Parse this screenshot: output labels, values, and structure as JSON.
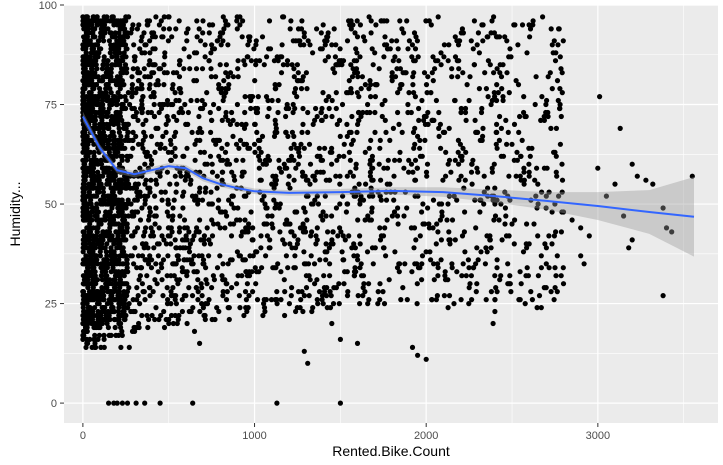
{
  "chart_data": {
    "type": "scatter",
    "title": "",
    "xlabel": "Rented.Bike.Count",
    "ylabel": "Humidity...",
    "xlim": [
      -110,
      3700
    ],
    "ylim": [
      -5,
      100
    ],
    "x_ticks": [
      0,
      1000,
      2000,
      3000
    ],
    "y_ticks": [
      0,
      25,
      50,
      75,
      100
    ],
    "x_tick_labels": [
      "0",
      "1000",
      "2000",
      "3000"
    ],
    "y_tick_labels": [
      "0",
      "25",
      "50",
      "75",
      "100"
    ],
    "grid": true,
    "legend": "none",
    "point_color": "#000000",
    "panel_background": "#ebebeb",
    "grid_color": "#ffffff",
    "smooth_color": "#3366ff",
    "ribbon_color": "#999999",
    "points": [
      [
        0,
        97
      ],
      [
        5,
        90
      ],
      [
        8,
        80
      ],
      [
        3,
        70
      ],
      [
        10,
        60
      ],
      [
        6,
        50
      ],
      [
        9,
        40
      ],
      [
        4,
        30
      ],
      [
        2,
        25
      ],
      [
        7,
        22
      ],
      [
        15,
        95
      ],
      [
        20,
        85
      ],
      [
        25,
        75
      ],
      [
        30,
        65
      ],
      [
        35,
        55
      ],
      [
        40,
        45
      ],
      [
        45,
        35
      ],
      [
        50,
        28
      ],
      [
        60,
        97
      ],
      [
        70,
        92
      ],
      [
        80,
        88
      ],
      [
        90,
        82
      ],
      [
        100,
        78
      ],
      [
        110,
        72
      ],
      [
        120,
        68
      ],
      [
        130,
        62
      ],
      [
        140,
        58
      ],
      [
        150,
        52
      ],
      [
        160,
        48
      ],
      [
        170,
        42
      ],
      [
        180,
        38
      ],
      [
        190,
        32
      ],
      [
        200,
        28
      ],
      [
        210,
        24
      ],
      [
        220,
        20
      ],
      [
        150,
        0
      ],
      [
        180,
        0
      ],
      [
        200,
        0
      ],
      [
        230,
        0
      ],
      [
        260,
        0
      ],
      [
        310,
        0
      ],
      [
        360,
        0
      ],
      [
        450,
        0
      ],
      [
        640,
        0
      ],
      [
        1130,
        0
      ],
      [
        1500,
        0
      ],
      [
        250,
        97
      ],
      [
        280,
        93
      ],
      [
        300,
        87
      ],
      [
        320,
        83
      ],
      [
        350,
        77
      ],
      [
        380,
        73
      ],
      [
        400,
        67
      ],
      [
        420,
        63
      ],
      [
        450,
        57
      ],
      [
        480,
        53
      ],
      [
        500,
        47
      ],
      [
        520,
        43
      ],
      [
        550,
        37
      ],
      [
        580,
        33
      ],
      [
        600,
        27
      ],
      [
        620,
        23
      ],
      [
        650,
        18
      ],
      [
        680,
        15
      ],
      [
        700,
        96
      ],
      [
        750,
        90
      ],
      [
        800,
        85
      ],
      [
        850,
        80
      ],
      [
        900,
        75
      ],
      [
        950,
        70
      ],
      [
        1000,
        65
      ],
      [
        1050,
        60
      ],
      [
        1100,
        55
      ],
      [
        1150,
        50
      ],
      [
        1200,
        45
      ],
      [
        1250,
        40
      ],
      [
        1300,
        35
      ],
      [
        1350,
        30
      ],
      [
        1400,
        25
      ],
      [
        1450,
        20
      ],
      [
        1310,
        10
      ],
      [
        1290,
        13
      ],
      [
        1500,
        16
      ],
      [
        1600,
        15
      ],
      [
        1600,
        92
      ],
      [
        1700,
        88
      ],
      [
        1800,
        82
      ],
      [
        1900,
        78
      ],
      [
        2000,
        72
      ],
      [
        2100,
        68
      ],
      [
        2200,
        62
      ],
      [
        2300,
        58
      ],
      [
        2400,
        50
      ],
      [
        2500,
        45
      ],
      [
        2600,
        40
      ],
      [
        2700,
        35
      ],
      [
        2800,
        30
      ],
      [
        1950,
        12
      ],
      [
        2000,
        11
      ],
      [
        1920,
        14
      ],
      [
        2390,
        20
      ],
      [
        2400,
        23
      ],
      [
        2490,
        30
      ],
      [
        2500,
        65
      ],
      [
        2550,
        62
      ],
      [
        2600,
        58
      ],
      [
        2650,
        55
      ],
      [
        2700,
        52
      ],
      [
        2750,
        50
      ],
      [
        2800,
        48
      ],
      [
        2850,
        46
      ],
      [
        2900,
        44
      ],
      [
        2950,
        42
      ],
      [
        3010,
        77
      ],
      [
        3130,
        69
      ],
      [
        3200,
        60
      ],
      [
        3230,
        57
      ],
      [
        3280,
        56
      ],
      [
        3320,
        55
      ],
      [
        3380,
        49
      ],
      [
        3400,
        44
      ],
      [
        3430,
        43
      ],
      [
        3550,
        57
      ],
      [
        3380,
        27
      ],
      [
        3150,
        47
      ],
      [
        3180,
        39
      ],
      [
        3200,
        41
      ],
      [
        3050,
        52
      ],
      [
        3100,
        55
      ],
      [
        2900,
        37
      ],
      [
        2920,
        35
      ],
      [
        3000,
        59
      ]
    ],
    "smooth_x": [
      0,
      100,
      200,
      300,
      400,
      500,
      600,
      700,
      800,
      900,
      1000,
      1200,
      1500,
      1800,
      2100,
      2400,
      2700,
      3000,
      3300,
      3560
    ],
    "smooth_y": [
      72,
      64,
      58.5,
      57.5,
      58.5,
      59.5,
      59,
      56.5,
      55,
      54,
      53.2,
      52.8,
      53,
      53.3,
      53,
      52,
      50.8,
      49.5,
      48,
      46.8
    ],
    "ribbon_half_width": [
      1.2,
      0.9,
      0.8,
      0.8,
      0.8,
      0.8,
      0.8,
      0.8,
      0.7,
      0.7,
      0.7,
      0.7,
      0.8,
      0.9,
      1.2,
      1.6,
      2.2,
      3.5,
      5.5,
      10
    ]
  }
}
